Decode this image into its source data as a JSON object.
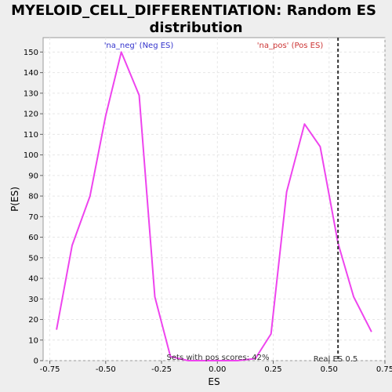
{
  "chart_data": {
    "type": "line",
    "title_lines": [
      "MYELOID_CELL_DIFFERENTIATION: Random ES",
      "distribution"
    ],
    "xlabel": "ES",
    "ylabel": "P(ES)",
    "xlim": [
      -0.78,
      0.75
    ],
    "ylim": [
      0,
      157
    ],
    "x_ticks": [
      -0.75,
      -0.5,
      -0.25,
      0.0,
      0.25,
      0.5,
      0.75
    ],
    "x_tick_labels": [
      "-0.75",
      "-0.50",
      "-0.25",
      "0.00",
      "0.25",
      "0.50",
      "0.75"
    ],
    "y_ticks": [
      0,
      10,
      20,
      30,
      40,
      50,
      60,
      70,
      80,
      90,
      100,
      110,
      120,
      130,
      140,
      150
    ],
    "grid": true,
    "line_color": "#ee44ee",
    "series": [
      {
        "x": [
          -0.72,
          -0.65,
          -0.57,
          -0.5,
          -0.43,
          -0.35,
          -0.28,
          -0.21,
          -0.13,
          -0.06,
          0.02,
          0.09,
          0.17,
          0.24,
          0.31,
          0.39,
          0.46,
          0.54,
          0.61,
          0.69
        ],
        "values": [
          15,
          56,
          80,
          119,
          150,
          129,
          31,
          2,
          0,
          0,
          0,
          0,
          1,
          13,
          82,
          115,
          104,
          57,
          31,
          14
        ]
      }
    ],
    "real_es_line": {
      "x": 0.54,
      "color": "#333333"
    },
    "annotations": {
      "neg_label": "'na_neg' (Neg ES)",
      "neg_color": "#3333cc",
      "pos_label": "'na_pos' (Pos ES)",
      "pos_color": "#cc3333",
      "sets_text": "Sets with pos scores: 42%",
      "real_es_text": "Real ES 0.5"
    }
  }
}
